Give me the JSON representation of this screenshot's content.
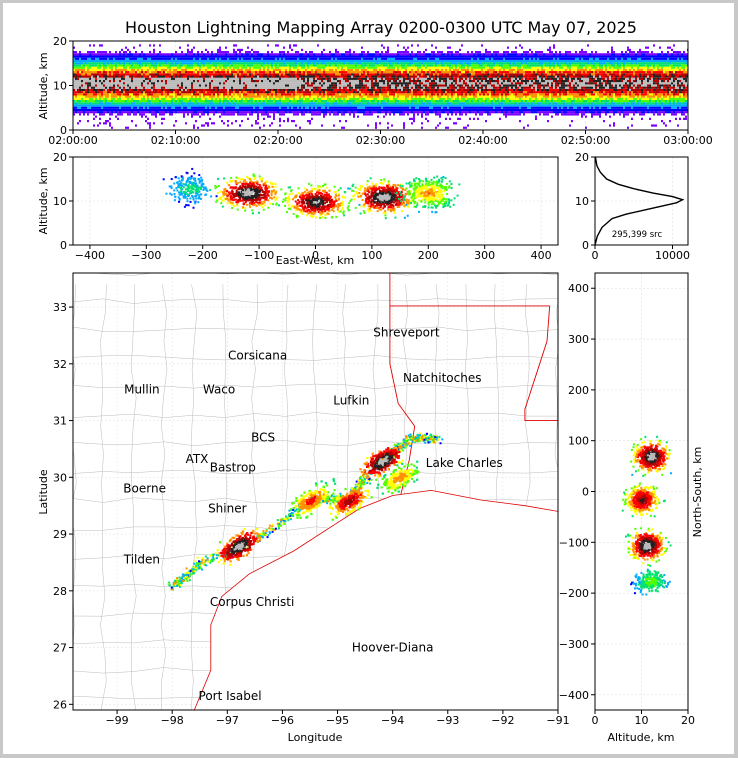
{
  "title": "Houston Lightning Mapping Array 0200-0300 UTC May 07, 2025",
  "colors": {
    "scale": [
      "#7a00ff",
      "#0000ff",
      "#00aaff",
      "#00e070",
      "#50ff00",
      "#ffff00",
      "#ff9000",
      "#ff0000",
      "#b00000",
      "#222222",
      "#bbbbbb"
    ],
    "state_border": "#e00000",
    "county_border": "#bbbbbb",
    "frame": "#c8c8c8"
  },
  "chart_data": [
    {
      "id": "time_altitude",
      "type": "heatmap",
      "xlabel": "",
      "ylabel": "Altitude, km",
      "xticks": [
        "02:00:00",
        "02:10:00",
        "02:20:00",
        "02:30:00",
        "02:40:00",
        "02:50:00",
        "03:00:00"
      ],
      "xlim_minutes": [
        0,
        60
      ],
      "ylim": [
        0,
        20
      ],
      "yticks": [
        0,
        10,
        20
      ],
      "band": {
        "core_altitude_km": 10.5,
        "top_km": 17,
        "bottom_km": 3
      }
    },
    {
      "id": "eastwest_altitude",
      "type": "heatmap",
      "xlabel": "East-West, km",
      "ylabel": "Altitude, km",
      "xlim": [
        -430,
        430
      ],
      "xticks": [
        -400,
        -300,
        -200,
        -100,
        0,
        100,
        200,
        300,
        400
      ],
      "ylim": [
        0,
        20
      ],
      "yticks": [
        0,
        10,
        20
      ],
      "clusters": [
        {
          "x_km": -225,
          "alt_km": 13,
          "intensity": 0.3
        },
        {
          "x_km": -120,
          "alt_km": 12,
          "intensity": 1.0
        },
        {
          "x_km": 0,
          "alt_km": 10,
          "intensity": 0.95
        },
        {
          "x_km": 120,
          "alt_km": 11,
          "intensity": 1.0
        },
        {
          "x_km": 200,
          "alt_km": 12,
          "intensity": 0.6
        }
      ]
    },
    {
      "id": "altitude_histogram",
      "type": "line",
      "xlabel": "",
      "ylabel": "",
      "xlim": [
        0,
        12000
      ],
      "xticks": [
        0,
        10000
      ],
      "ylim": [
        0,
        20
      ],
      "yticks": [
        0,
        10,
        20
      ],
      "annotation": "295,399 src",
      "x": [
        0,
        300,
        900,
        2200,
        4000,
        6500,
        9000,
        10500,
        11300,
        10000,
        7500,
        5000,
        3000,
        1500,
        700,
        250,
        50
      ],
      "y": [
        0,
        2,
        4,
        6,
        7,
        8,
        9,
        9.6,
        10.3,
        11,
        11.8,
        12.8,
        13.8,
        15,
        16.5,
        18,
        20
      ]
    },
    {
      "id": "plan_view",
      "type": "scatter",
      "xlabel": "Longitude",
      "ylabel": "Latitude",
      "xlim": [
        -99.8,
        -91
      ],
      "xticks": [
        -99,
        -98,
        -97,
        -96,
        -95,
        -94,
        -93,
        -92,
        -91
      ],
      "ylim": [
        25.9,
        33.6
      ],
      "yticks": [
        26,
        27,
        28,
        29,
        30,
        31,
        32,
        33
      ],
      "storm_line": [
        {
          "lon": -98.0,
          "lat": 28.1
        },
        {
          "lon": -97.5,
          "lat": 28.5
        },
        {
          "lon": -96.6,
          "lat": 28.85
        },
        {
          "lon": -95.5,
          "lat": 29.6
        },
        {
          "lon": -94.8,
          "lat": 29.65
        },
        {
          "lon": -94.25,
          "lat": 30.3
        },
        {
          "lon": -93.7,
          "lat": 30.7
        },
        {
          "lon": -93.2,
          "lat": 30.7
        }
      ],
      "cores": [
        {
          "lon": -96.8,
          "lat": 28.8,
          "intensity": 1.0
        },
        {
          "lon": -95.5,
          "lat": 29.6,
          "intensity": 0.7
        },
        {
          "lon": -94.8,
          "lat": 29.6,
          "intensity": 0.8
        },
        {
          "lon": -94.2,
          "lat": 30.3,
          "intensity": 1.0
        },
        {
          "lon": -93.9,
          "lat": 30.0,
          "intensity": 0.6
        }
      ],
      "cities": [
        {
          "name": "Shreveport",
          "lon": -93.75,
          "lat": 32.55,
          "color": "#000000"
        },
        {
          "name": "Corsicana",
          "lon": -96.45,
          "lat": 32.15,
          "color": "#000000"
        },
        {
          "name": "Natchitoches",
          "lon": -93.1,
          "lat": 31.75,
          "color": "#000000"
        },
        {
          "name": "Mullin",
          "lon": -98.55,
          "lat": 31.55,
          "color": "#ff8c40"
        },
        {
          "name": "Waco",
          "lon": -97.15,
          "lat": 31.55,
          "color": "#000000"
        },
        {
          "name": "Lufkin",
          "lon": -94.75,
          "lat": 31.35,
          "color": "#000000"
        },
        {
          "name": "BCS",
          "lon": -96.35,
          "lat": 30.7,
          "color": "#000000"
        },
        {
          "name": "ATX",
          "lon": -97.55,
          "lat": 30.32,
          "color": "#ff8c40"
        },
        {
          "name": "Lake Charles",
          "lon": -92.7,
          "lat": 30.25,
          "color": "#000000"
        },
        {
          "name": "Bastrop",
          "lon": -96.9,
          "lat": 30.17,
          "color": "#000000"
        },
        {
          "name": "Boerne",
          "lon": -98.5,
          "lat": 29.8,
          "color": "#000000"
        },
        {
          "name": "Shiner",
          "lon": -97.0,
          "lat": 29.45,
          "color": "#000000"
        },
        {
          "name": "Tilden",
          "lon": -98.55,
          "lat": 28.55,
          "color": "#000000"
        },
        {
          "name": "Corpus Christi",
          "lon": -96.55,
          "lat": 27.8,
          "color": "#000000"
        },
        {
          "name": "Hoover-Diana",
          "lon": -94.0,
          "lat": 27.0,
          "color": "#0000dd"
        },
        {
          "name": "Port Isabel",
          "lon": -96.95,
          "lat": 26.15,
          "color": "#000000"
        }
      ]
    },
    {
      "id": "altitude_northsouth",
      "type": "heatmap",
      "xlabel": "Altitude, km",
      "ylabel": "North-South, km",
      "xlim": [
        0,
        20
      ],
      "xticks": [
        0,
        10,
        20
      ],
      "ylim": [
        -430,
        430
      ],
      "yticks": [
        -400,
        -300,
        -200,
        -100,
        0,
        100,
        200,
        300,
        400
      ],
      "clusters": [
        {
          "ns_km": 70,
          "alt_km": 12,
          "intensity": 1.0
        },
        {
          "ns_km": -15,
          "alt_km": 10,
          "intensity": 0.85
        },
        {
          "ns_km": -105,
          "alt_km": 11,
          "intensity": 1.0
        },
        {
          "ns_km": -175,
          "alt_km": 12,
          "intensity": 0.4
        }
      ]
    }
  ]
}
